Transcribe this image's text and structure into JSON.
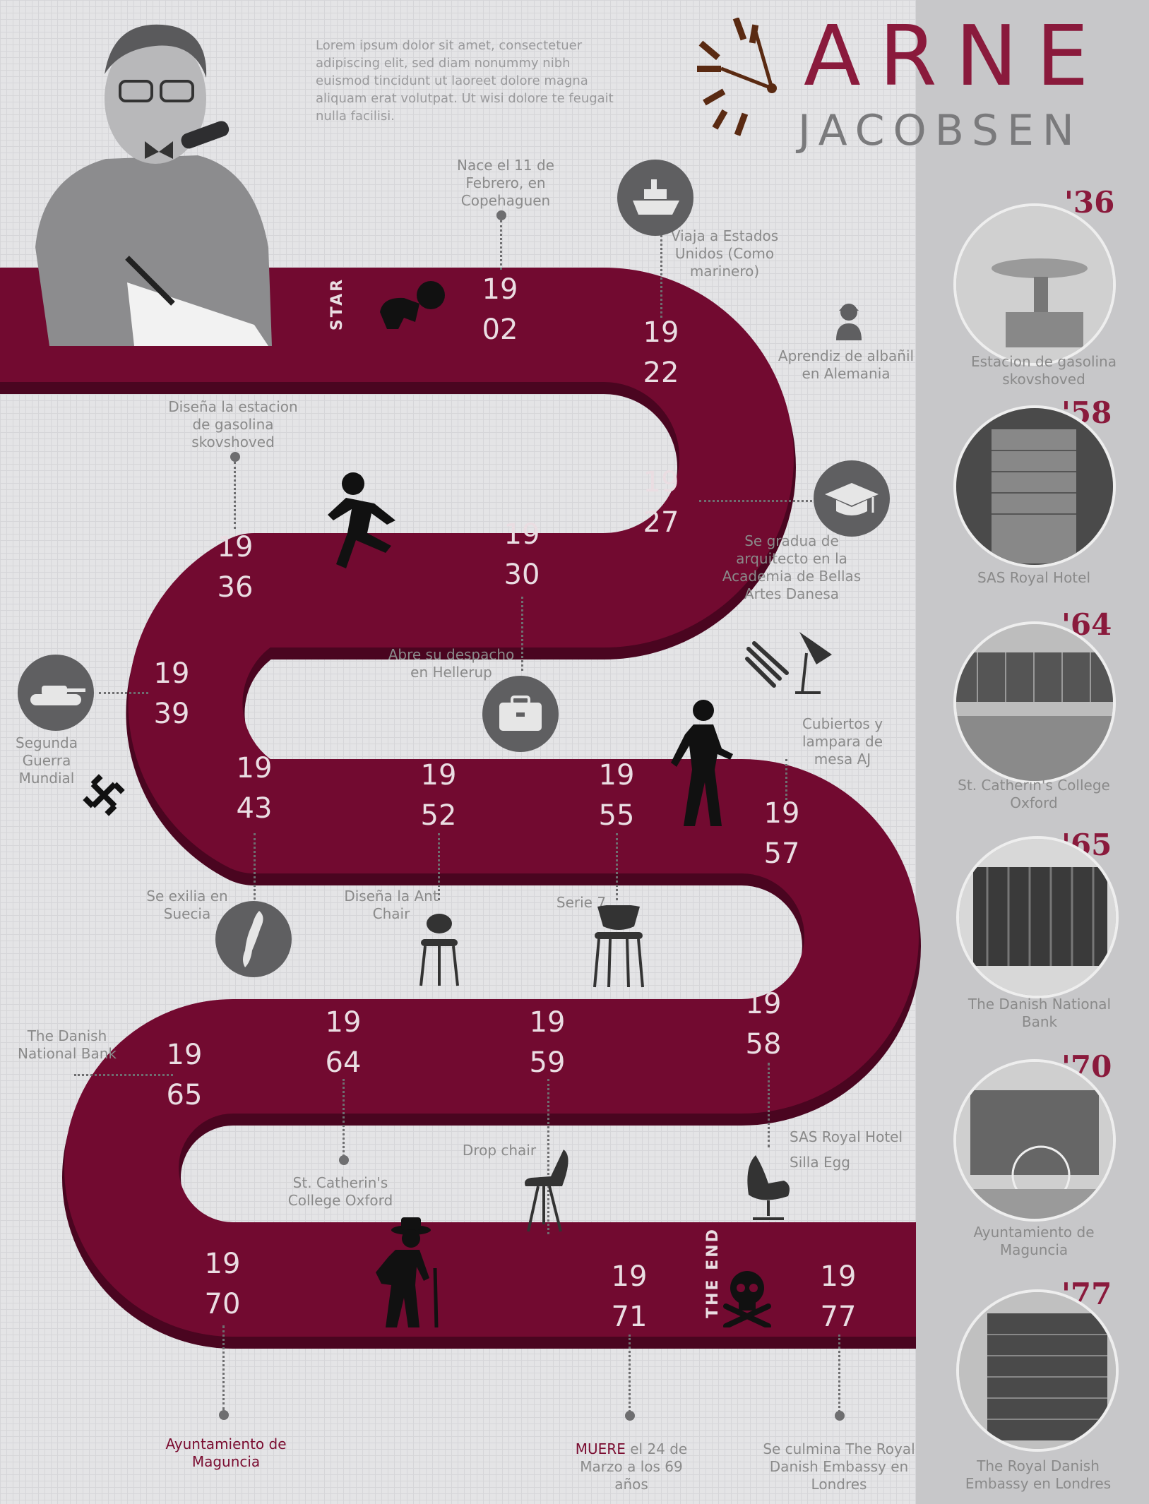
{
  "title": {
    "first": "ARNE",
    "last": "JACOBSEN"
  },
  "intro": "Lorem ipsum dolor sit amet, consectetuer adipiscing elit, sed diam nonummy nibh euismod tincidunt ut laoreet dolore magna aliquam erat volutpat. Ut wisi dolore te feugait nulla facilisi.",
  "road_labels": {
    "start": "STAR",
    "end": "THE END"
  },
  "years": [
    {
      "a": "19",
      "b": "02"
    },
    {
      "a": "19",
      "b": "22"
    },
    {
      "a": "19",
      "b": "27"
    },
    {
      "a": "19",
      "b": "30"
    },
    {
      "a": "19",
      "b": "36"
    },
    {
      "a": "19",
      "b": "39"
    },
    {
      "a": "19",
      "b": "43"
    },
    {
      "a": "19",
      "b": "52"
    },
    {
      "a": "19",
      "b": "55"
    },
    {
      "a": "19",
      "b": "57"
    },
    {
      "a": "19",
      "b": "58"
    },
    {
      "a": "19",
      "b": "59"
    },
    {
      "a": "19",
      "b": "64"
    },
    {
      "a": "19",
      "b": "65"
    },
    {
      "a": "19",
      "b": "70"
    },
    {
      "a": "19",
      "b": "71"
    },
    {
      "a": "19",
      "b": "77"
    }
  ],
  "captions": {
    "c1902": "Nace el 11 de Febrero, en Copehaguen",
    "c1922a": "Viaja a Estados Unidos (Como marinero)",
    "c1922b": "Aprendiz de albañil en Alemania",
    "c1927": "Se gradua de arquitecto en la Academia de Bellas Artes Danesa",
    "c1936": "Diseña la estacion de gasolina skovshoved",
    "c1930": "Abre su despacho en Hellerup",
    "c1939": "Segunda Guerra Mundial",
    "c1957": "Cubiertos y lampara de mesa AJ",
    "c1943": "Se exilia en Suecia",
    "c1952": "Diseña la Ant Chair",
    "c1955": "Serie 7",
    "c1965": "The Danish National Bank",
    "c1964": "St. Catherin's College Oxford",
    "c1959": "Drop chair",
    "c1958a": "SAS Royal Hotel",
    "c1958b": "Silla Egg",
    "c1970": "Ayuntamiento de Maguncia",
    "c1971_bold": "MUERE",
    "c1971": "el 24 de Marzo a los 69 años",
    "c1977": "Se culmina The Royal Danish Embassy en Londres"
  },
  "buildings": [
    {
      "year": "'36",
      "name": "Estacion de gasolina skovshoved"
    },
    {
      "year": "'58",
      "name": "SAS Royal Hotel"
    },
    {
      "year": "'64",
      "name": "St. Catherin's College Oxford"
    },
    {
      "year": "'65",
      "name": "The Danish National Bank"
    },
    {
      "year": "'70",
      "name": "Ayuntamiento de Maguncia"
    },
    {
      "year": "'77",
      "name": "The Royal Danish Embassy en Londres"
    }
  ],
  "colors": {
    "road": "#720a30",
    "road_shadow": "#4a0520",
    "accent": "#8a1a3c",
    "icon_circle": "#5f5f61"
  },
  "icons": [
    "ship-icon",
    "worker-icon",
    "graduation-cap-icon",
    "baby-crawling-icon",
    "running-man-icon",
    "briefcase-icon",
    "tank-icon",
    "swastika-icon",
    "walking-man-icon",
    "cutlery-icon",
    "lamp-icon",
    "sweden-map-icon",
    "ant-chair-icon",
    "series7-chair-icon",
    "drop-chair-icon",
    "egg-chair-icon",
    "old-man-icon",
    "skull-icon",
    "clock-logo-icon"
  ]
}
